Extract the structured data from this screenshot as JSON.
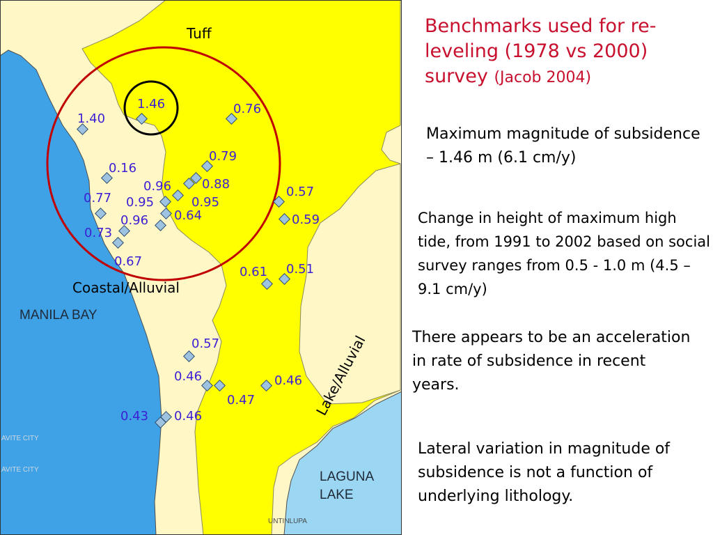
{
  "title": {
    "main": "Benchmarks used for re-leveling (1978 vs 2000) survey",
    "citation": "(Jacob 2004)"
  },
  "map": {
    "units": [
      "Tuff",
      "Coastal/Alluvial",
      "Lake/Alluvial"
    ],
    "water_labels": {
      "bay": "MANILA BAY",
      "lake_line1": "LAGUNA",
      "lake_line2": "LAKE"
    },
    "place_labels": [
      "AVITE CITY",
      "AVITE CITY",
      "UNTINLUPA"
    ],
    "benchmarks": [
      "1.46",
      "1.40",
      "0.76",
      "0.79",
      "0.16",
      "0.88",
      "0.96",
      "0.77",
      "0.95",
      "0.95",
      "0.57",
      "0.64",
      "0.96",
      "0.59",
      "0.73",
      "0.67",
      "0.61",
      "0.51",
      "0.57",
      "0.46",
      "0.46",
      "0.47",
      "0.43",
      "0.46"
    ],
    "colors": {
      "tuff": "#ffff00",
      "coastal": "#fff7c6",
      "water": "#3fa2e6",
      "lake": "#9bd6f2",
      "circle": "#c00000",
      "benchmark_label": "#3c1fd4",
      "benchmark_marker": "#9ec3e0"
    }
  },
  "notes": [
    "Maximum magnitude of subsidence – 1.46 m (6.1 cm/y)",
    "Change in height of maximum high tide, from 1991 to 2002 based on social survey ranges from 0.5 - 1.0 m (4.5 – 9.1 cm/y)",
    "There appears to be an acceleration in rate of subsidence in recent years.",
    "Lateral variation in magnitude of subsidence is not a function of underlying lithology."
  ]
}
